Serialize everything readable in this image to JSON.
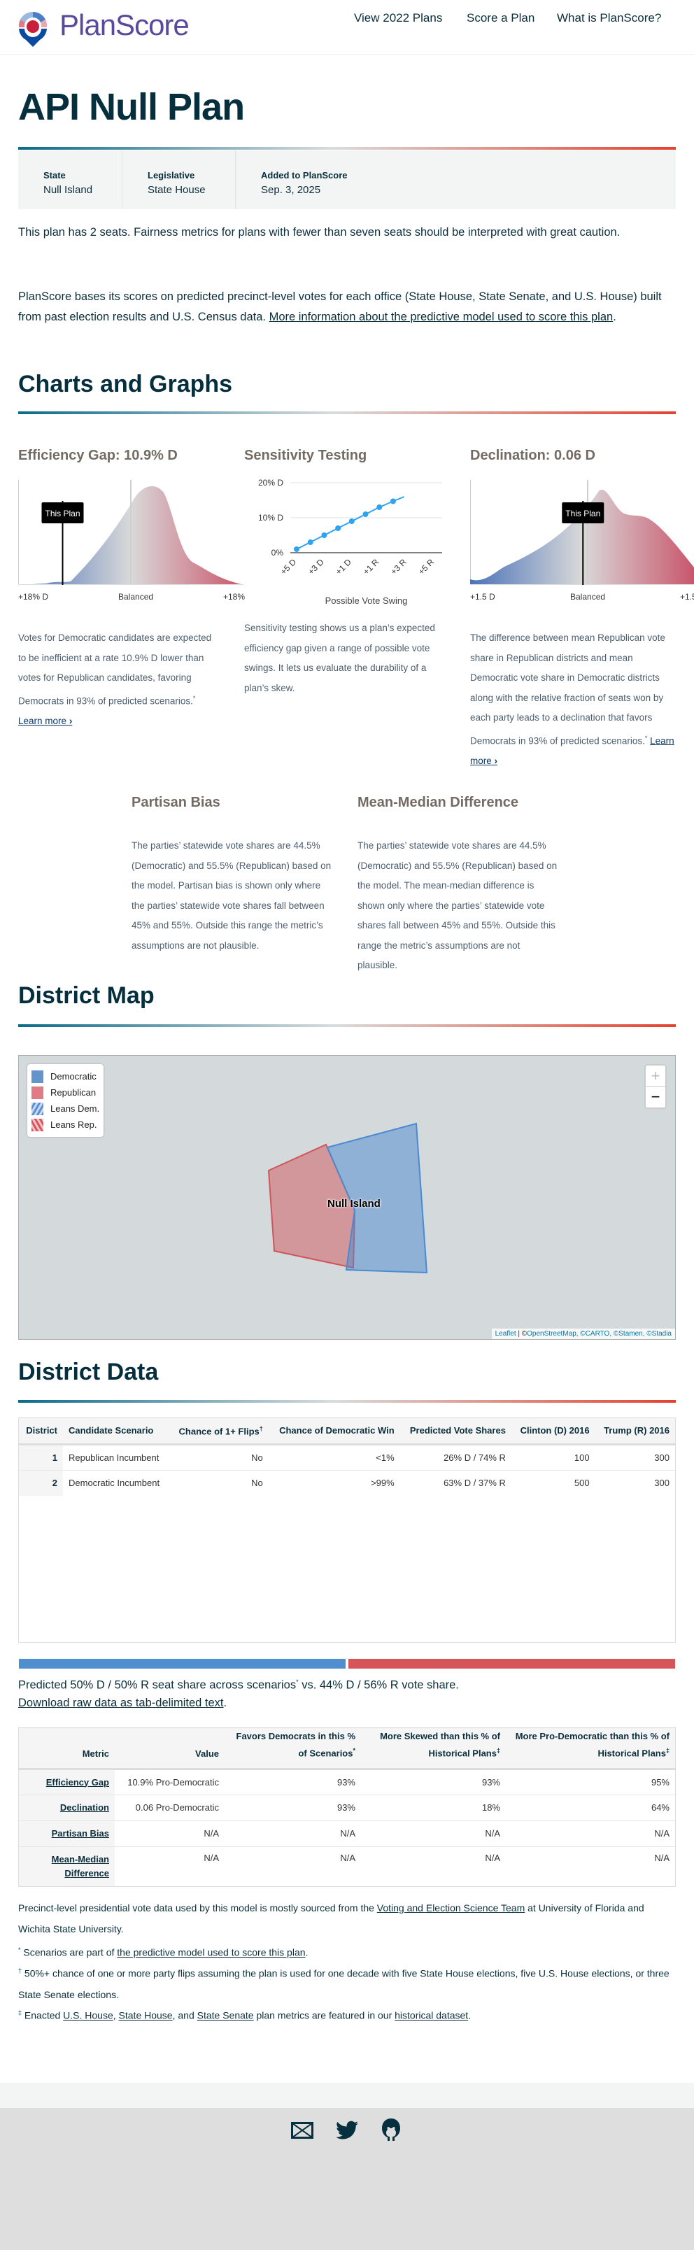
{
  "header": {
    "logo_text": "PlanScore",
    "nav": [
      "View 2022 Plans",
      "Score a Plan",
      "What is PlanScore?"
    ]
  },
  "plan": {
    "title": "API Null Plan",
    "info": [
      {
        "label": "State",
        "value": "Null Island"
      },
      {
        "label": "Legislative",
        "value": "State House"
      },
      {
        "label": "Added to PlanScore",
        "value": "Sep. 3, 2025"
      }
    ],
    "warning": "This plan has 2 seats. Fairness metrics for plans with fewer than seven seats should be interpreted with great caution.",
    "intro": "PlanScore bases its scores on predicted precinct-level votes for each office (State House, State Senate, and U.S. House) built from past election results and U.S. Census data. ",
    "intro_link": "More information about the predictive model used to score this plan",
    "intro_end": "."
  },
  "charts_section": {
    "heading": "Charts and Graphs",
    "learn_more": "Learn more",
    "efficiency_gap": {
      "title": "Efficiency Gap: 10.9% D",
      "marker_label": "This Plan",
      "axis": [
        "+18% D",
        "Balanced",
        "+18%"
      ],
      "desc": "Votes for Democratic candidates are expected to be inefficient at a rate 10.9% D lower than votes for Republican candidates, favoring Democrats in 93% of predicted scenarios."
    },
    "sensitivity": {
      "title": "Sensitivity Testing",
      "xlabel": "Possible Vote Swing",
      "desc": "Sensitivity testing shows us a plan’s expected efficiency gap given a range of possible vote swings. It lets us evaluate the durability of a plan’s skew."
    },
    "declination": {
      "title": "Declination: 0.06 D",
      "marker_label": "This Plan",
      "axis": [
        "+1.5 D",
        "Balanced",
        "+1.5"
      ],
      "desc": "The difference between mean Republican vote share in Republican districts and mean Democratic vote share in Democratic districts along with the relative fraction of seats won by each party leads to a declination that favors Democrats in 93% of predicted scenarios."
    },
    "partisan_bias": {
      "title": "Partisan Bias",
      "desc": "The parties’ statewide vote shares are 44.5% (Democratic) and 55.5% (Republican) based on the model. Partisan bias is shown only where the parties’ statewide vote shares fall between 45% and 55%. Outside this range the metric’s assumptions are not plausible."
    },
    "mean_median": {
      "title": "Mean-Median Difference",
      "desc": "The parties’ statewide vote shares are 44.5% (Democratic) and 55.5% (Republican) based on the model. The mean-median difference is shown only where the parties’ statewide vote shares fall between 45% and 55%. Outside this range the metric’s assumptions are not plausible."
    }
  },
  "chart_data": [
    {
      "type": "area",
      "title": "Efficiency Gap: 10.9% D",
      "xlim": [
        -18,
        18
      ],
      "x_tick_labels": [
        "+18% D",
        "Balanced",
        "+18%"
      ],
      "plan_value": -10.9,
      "marker_label": "This Plan",
      "colors": {
        "dem": "#4a72b8",
        "neutral": "#d9d9d9",
        "rep": "#c9566b"
      }
    },
    {
      "type": "line",
      "title": "Sensitivity Testing",
      "xlabel": "Possible Vote Swing",
      "x_tick_labels": [
        "+5 D",
        "+3 D",
        "+1 D",
        "+1 R",
        "+3 R",
        "+5 R"
      ],
      "y_tick_labels": [
        "20% D",
        "10% D",
        "0%"
      ],
      "ylim": [
        0,
        20
      ],
      "x": [
        "+5 D",
        "+4 D",
        "+3 D",
        "+2 D",
        "+1 D",
        "0",
        "+1 R",
        "+2 R"
      ],
      "values": [
        1,
        3,
        5,
        7,
        9,
        11,
        13,
        14.7
      ],
      "color": "#2ea3f2"
    },
    {
      "type": "area",
      "title": "Declination: 0.06 D",
      "xlim": [
        -1.5,
        1.5
      ],
      "x_tick_labels": [
        "+1.5 D",
        "Balanced",
        "+1.5"
      ],
      "plan_value": -0.06,
      "marker_label": "This Plan",
      "colors": {
        "dem": "#4a72b8",
        "neutral": "#d9d9d9",
        "rep": "#c9566b"
      }
    }
  ],
  "map": {
    "heading": "District Map",
    "legend": [
      "Democratic",
      "Republican",
      "Leans Dem.",
      "Leans Rep."
    ],
    "place_label": "Null Island",
    "zoom_in": "+",
    "zoom_out": "−",
    "attribution": {
      "leaflet": "Leaflet",
      "sep": " | ©",
      "osm": "OpenStreetMap",
      "rest": ", ©CARTO, ©Stamen, ©Stadia"
    },
    "colors": {
      "dem": "#4a8ad0",
      "rep": "#d0555a",
      "bg": "#d4d9dc"
    }
  },
  "district_data": {
    "heading": "District Data",
    "columns": [
      "District",
      "Candidate Scenario",
      "Chance of 1+ Flips",
      "Chance of Democratic Win",
      "Predicted Vote Shares",
      "Clinton (D) 2016",
      "Trump (R) 2016"
    ],
    "flips_mark": "†",
    "rows": [
      [
        "1",
        "Republican Incumbent",
        "No",
        "<1%",
        "26% D / 74% R",
        "100",
        "300"
      ],
      [
        "2",
        "Democratic Incumbent",
        "No",
        ">99%",
        "63% D / 37% R",
        "500",
        "300"
      ]
    ]
  },
  "seat_share": {
    "dem_pct": 50,
    "rep_pct": 50,
    "text1": "Predicted 50% D / 50% R seat share across scenarios",
    "mark": "*",
    "text2": " vs. 44% D / 56% R vote share.",
    "download": "Download raw data as tab-delimited text",
    "download_end": "."
  },
  "metrics": {
    "columns": [
      "Metric",
      "Value",
      "Favors Democrats in this % of Scenarios",
      "More Skewed than this % of Historical Plans",
      "More Pro-Democratic than this % of Historical Plans"
    ],
    "marks": [
      "*",
      "‡",
      "‡"
    ],
    "rows": [
      [
        "Efficiency Gap",
        "10.9% Pro-Democratic",
        "93%",
        "93%",
        "95%"
      ],
      [
        "Declination",
        "0.06 Pro-Democratic",
        "93%",
        "18%",
        "64%"
      ],
      [
        "Partisan Bias",
        "N/A",
        "N/A",
        "N/A",
        "N/A"
      ],
      [
        "Mean-Median Difference",
        "N/A",
        "N/A",
        "N/A",
        "N/A"
      ]
    ]
  },
  "footnotes": {
    "source1": "Precinct-level presidential vote data used by this model is mostly sourced from the ",
    "source_link": "Voting and Election Science Team",
    "source2": " at University of Florida and Wichita State University.",
    "star": "*",
    "scen1": " Scenarios are part of ",
    "scen_link": "the predictive model used to score this plan",
    "scen2": ".",
    "dagger": "†",
    "flips": " 50%+ chance of one or more party flips assuming the plan is used for one decade with five State House elections, five U.S. House elections, or three State Senate elections.",
    "ddagger": "‡",
    "hist1": " Enacted ",
    "hist_links": [
      "U.S. House",
      "State House",
      "State Senate",
      "historical dataset"
    ],
    "hist_sep": [
      ", ",
      ", and ",
      " plan metrics are featured in our ",
      "."
    ]
  },
  "footer": {
    "icons": [
      "email-icon",
      "twitter-icon",
      "github-icon"
    ],
    "color": "#06303e"
  }
}
